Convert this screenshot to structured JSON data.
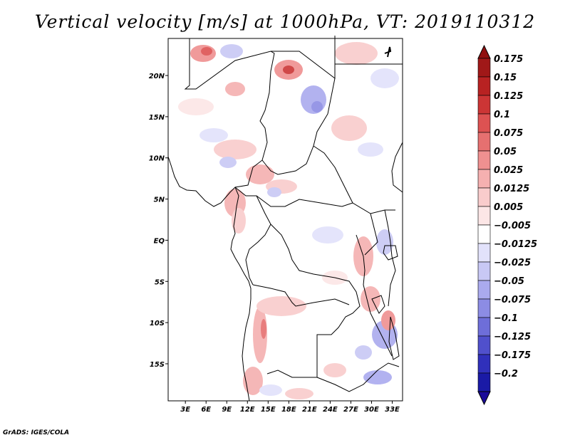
{
  "title": "Vertical velocity [m/s] at 1000hPa, VT: 2019110312",
  "footer": "GrADS: IGES/COLA",
  "map": {
    "lat_range": [
      -19.5,
      24.5
    ],
    "lon_range": [
      0.5,
      34.5
    ],
    "lat_ticks": [
      {
        "value": 20,
        "label": "20N"
      },
      {
        "value": 15,
        "label": "15N"
      },
      {
        "value": 10,
        "label": "10N"
      },
      {
        "value": 5,
        "label": "5N"
      },
      {
        "value": 0,
        "label": "EQ"
      },
      {
        "value": -5,
        "label": "5S"
      },
      {
        "value": -10,
        "label": "10S"
      },
      {
        "value": -15,
        "label": "15S"
      }
    ],
    "lon_ticks": [
      {
        "value": 3,
        "label": "3E"
      },
      {
        "value": 6,
        "label": "6E"
      },
      {
        "value": 9,
        "label": "9E"
      },
      {
        "value": 12,
        "label": "12E"
      },
      {
        "value": 15,
        "label": "15E"
      },
      {
        "value": 18,
        "label": "18E"
      },
      {
        "value": 21,
        "label": "21E"
      },
      {
        "value": 24,
        "label": "24E"
      },
      {
        "value": 27,
        "label": "27E"
      },
      {
        "value": 30,
        "label": "30E"
      },
      {
        "value": 33,
        "label": "33E"
      }
    ]
  },
  "colorbar": {
    "levels": [
      {
        "label": "0.175",
        "color": "#a01818"
      },
      {
        "label": "0.15",
        "color": "#b82222"
      },
      {
        "label": "0.125",
        "color": "#cc3535"
      },
      {
        "label": "0.1",
        "color": "#dd5252"
      },
      {
        "label": "0.075",
        "color": "#e67070"
      },
      {
        "label": "0.05",
        "color": "#ef9090"
      },
      {
        "label": "0.025",
        "color": "#f5b0b0"
      },
      {
        "label": "0.0125",
        "color": "#f9cccc"
      },
      {
        "label": "0.005",
        "color": "#fce6e6"
      },
      {
        "label": "−0.005",
        "color": "#ffffff"
      },
      {
        "label": "−0.0125",
        "color": "#e2e2fb"
      },
      {
        "label": "−0.025",
        "color": "#c8c8f5"
      },
      {
        "label": "−0.05",
        "color": "#aaaaee"
      },
      {
        "label": "−0.075",
        "color": "#8c8ce4"
      },
      {
        "label": "−0.1",
        "color": "#6e6ed9"
      },
      {
        "label": "−0.125",
        "color": "#5050cc"
      },
      {
        "label": "−0.175",
        "color": "#3030bb"
      },
      {
        "label": "−0.2",
        "color": "#1a1aa6"
      }
    ],
    "top_arrow_color": "#901010",
    "bottom_arrow_color": "#1a0a99"
  }
}
